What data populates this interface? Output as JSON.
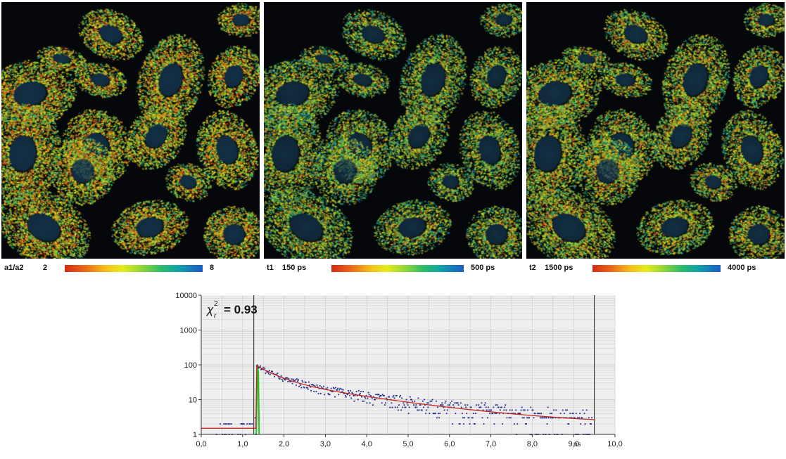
{
  "panels": [
    {
      "colorbar_label": "a1/a2",
      "min_label": "2",
      "max_label": "8"
    },
    {
      "colorbar_label": "t1",
      "min_label": "150 ps",
      "max_label": "500 ps"
    },
    {
      "colorbar_label": "t2",
      "min_label": "1500 ps",
      "max_label": "4000 ps"
    }
  ],
  "decay": {
    "chi_label": "χ",
    "chi_sub": "r",
    "chi_sup": "2",
    "chi_value": "= 0.93",
    "y_scale": "log",
    "y_ticks": [
      "1",
      "10",
      "100",
      "1000",
      "10000"
    ],
    "x_ticks": [
      "0,0",
      "1,0",
      "2,0",
      "3,0",
      "4,0",
      "5,0",
      "6,0",
      "7,0",
      "8,0",
      "9,0",
      "10,0"
    ],
    "x_unit": "ns",
    "x_range": [
      0,
      10
    ],
    "y_range": [
      1,
      10000
    ],
    "cursor_lines_ns": [
      1.27,
      9.5
    ],
    "colors": {
      "points": "#1c2a8c",
      "fit": "#c8281e",
      "irf": "#22c022",
      "grid": "#c8c8c8",
      "plot_bg": "#efefef"
    }
  }
}
